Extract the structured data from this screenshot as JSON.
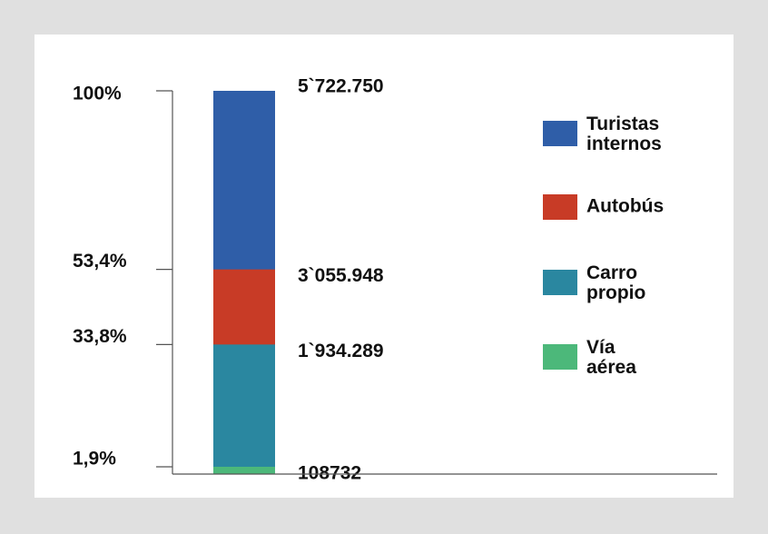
{
  "chart_data": {
    "type": "bar",
    "series": [
      {
        "name": "Turistas internos",
        "color": "#2f5ea8",
        "values": [
          5722750
        ],
        "value_labels": [
          "5`722.750"
        ]
      },
      {
        "name": "Autobús",
        "color": "#c83b26",
        "values": [
          3055948
        ],
        "value_labels": [
          "3`055.948"
        ]
      },
      {
        "name": "Carro propio",
        "color": "#2a87a0",
        "values": [
          1934289
        ],
        "value_labels": [
          "1`934.289"
        ]
      },
      {
        "name": "Vía aérea",
        "color": "#4cb87a",
        "values": [
          108732
        ],
        "value_labels": [
          "108732"
        ]
      }
    ],
    "ylim": [
      0,
      5722750
    ],
    "yticks": [
      {
        "value": 5722750,
        "label": "100%"
      },
      {
        "value": 3055948,
        "label": "53,4%"
      },
      {
        "value": 1934289,
        "label": "33,8%"
      },
      {
        "value": 108732,
        "label": "1,9%"
      }
    ],
    "legend": "right"
  }
}
